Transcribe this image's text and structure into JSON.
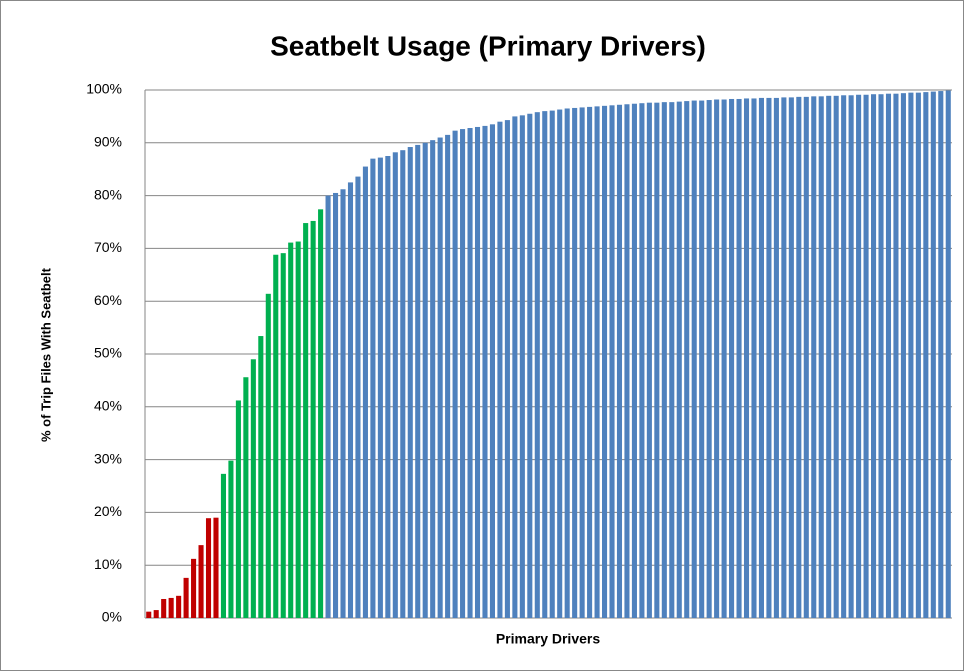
{
  "chart_data": {
    "type": "bar",
    "title": "Seatbelt Usage (Primary Drivers)",
    "x_label": "Primary Drivers",
    "y_label": "% of Trip Files With Seatbelt",
    "categories": [
      null,
      null,
      null,
      null,
      null,
      null,
      null,
      null,
      null,
      null,
      null,
      null,
      null,
      null,
      null,
      null,
      null,
      null,
      null,
      null,
      null,
      null,
      null,
      null,
      null,
      null,
      null,
      null,
      null,
      null,
      null,
      null,
      null,
      null,
      null,
      null,
      null,
      null,
      null,
      null,
      null,
      null,
      null,
      null,
      null,
      null,
      null,
      null,
      null,
      null,
      null,
      null,
      null,
      null,
      null,
      null,
      null,
      null,
      null,
      null,
      null,
      null,
      null,
      null,
      null,
      null,
      null,
      null,
      null,
      null,
      null,
      null,
      null,
      null,
      null,
      null,
      null,
      null,
      null,
      null,
      null,
      null,
      null,
      null,
      null,
      null,
      null,
      null,
      null,
      null,
      null,
      null,
      null,
      null,
      null,
      null,
      null,
      null,
      null,
      null,
      null,
      null,
      null,
      null,
      null,
      null,
      null,
      null
    ],
    "values": [
      1.2,
      1.5,
      3.6,
      3.8,
      4.2,
      7.6,
      11.2,
      13.8,
      18.9,
      19.0,
      27.3,
      29.8,
      41.2,
      45.6,
      49,
      53.4,
      61.4,
      68.8,
      69.1,
      71.1,
      71.3,
      74.8,
      75.2,
      77.4,
      80,
      80.5,
      81.2,
      82.5,
      83.6,
      85.5,
      87,
      87.2,
      87.5,
      88.2,
      88.6,
      89.2,
      89.6,
      90,
      90.5,
      91,
      91.5,
      92.3,
      92.6,
      92.8,
      93,
      93.2,
      93.5,
      94,
      94.3,
      95,
      95.2,
      95.5,
      95.8,
      96,
      96.1,
      96.3,
      96.5,
      96.6,
      96.7,
      96.8,
      96.9,
      97,
      97.1,
      97.2,
      97.3,
      97.4,
      97.5,
      97.6,
      97.6,
      97.7,
      97.7,
      97.8,
      97.9,
      98,
      98,
      98.1,
      98.2,
      98.2,
      98.3,
      98.3,
      98.4,
      98.4,
      98.5,
      98.5,
      98.5,
      98.6,
      98.6,
      98.7,
      98.7,
      98.8,
      98.8,
      98.9,
      98.9,
      99,
      99,
      99.1,
      99.1,
      99.2,
      99.2,
      99.3,
      99.3,
      99.4,
      99.5,
      99.5,
      99.6,
      99.7,
      99.8,
      99.9
    ],
    "colors": [
      "#c00000",
      "#c00000",
      "#c00000",
      "#c00000",
      "#c00000",
      "#c00000",
      "#c00000",
      "#c00000",
      "#c00000",
      "#c00000",
      "#00b050",
      "#00b050",
      "#00b050",
      "#00b050",
      "#00b050",
      "#00b050",
      "#00b050",
      "#00b050",
      "#00b050",
      "#00b050",
      "#00b050",
      "#00b050",
      "#00b050",
      "#00b050",
      "#4f81bd",
      "#4f81bd",
      "#4f81bd",
      "#4f81bd",
      "#4f81bd",
      "#4f81bd",
      "#4f81bd",
      "#4f81bd",
      "#4f81bd",
      "#4f81bd",
      "#4f81bd",
      "#4f81bd",
      "#4f81bd",
      "#4f81bd",
      "#4f81bd",
      "#4f81bd",
      "#4f81bd",
      "#4f81bd",
      "#4f81bd",
      "#4f81bd",
      "#4f81bd",
      "#4f81bd",
      "#4f81bd",
      "#4f81bd",
      "#4f81bd",
      "#4f81bd",
      "#4f81bd",
      "#4f81bd",
      "#4f81bd",
      "#4f81bd",
      "#4f81bd",
      "#4f81bd",
      "#4f81bd",
      "#4f81bd",
      "#4f81bd",
      "#4f81bd",
      "#4f81bd",
      "#4f81bd",
      "#4f81bd",
      "#4f81bd",
      "#4f81bd",
      "#4f81bd",
      "#4f81bd",
      "#4f81bd",
      "#4f81bd",
      "#4f81bd",
      "#4f81bd",
      "#4f81bd",
      "#4f81bd",
      "#4f81bd",
      "#4f81bd",
      "#4f81bd",
      "#4f81bd",
      "#4f81bd",
      "#4f81bd",
      "#4f81bd",
      "#4f81bd",
      "#4f81bd",
      "#4f81bd",
      "#4f81bd",
      "#4f81bd",
      "#4f81bd",
      "#4f81bd",
      "#4f81bd",
      "#4f81bd",
      "#4f81bd",
      "#4f81bd",
      "#4f81bd",
      "#4f81bd",
      "#4f81bd",
      "#4f81bd",
      "#4f81bd",
      "#4f81bd",
      "#4f81bd",
      "#4f81bd",
      "#4f81bd",
      "#4f81bd",
      "#4f81bd",
      "#4f81bd",
      "#4f81bd",
      "#4f81bd",
      "#4f81bd",
      "#4f81bd",
      "#4f81bd"
    ],
    "ylim": [
      0,
      100
    ],
    "yticks": [
      {
        "value": 0,
        "label": "0%"
      },
      {
        "value": 10,
        "label": "10%"
      },
      {
        "value": 20,
        "label": "20%"
      },
      {
        "value": 30,
        "label": "30%"
      },
      {
        "value": 40,
        "label": "40%"
      },
      {
        "value": 50,
        "label": "50%"
      },
      {
        "value": 60,
        "label": "60%"
      },
      {
        "value": 70,
        "label": "70%"
      },
      {
        "value": 80,
        "label": "80%"
      },
      {
        "value": 90,
        "label": "90%"
      },
      {
        "value": 100,
        "label": "100%"
      }
    ],
    "grid": true
  }
}
